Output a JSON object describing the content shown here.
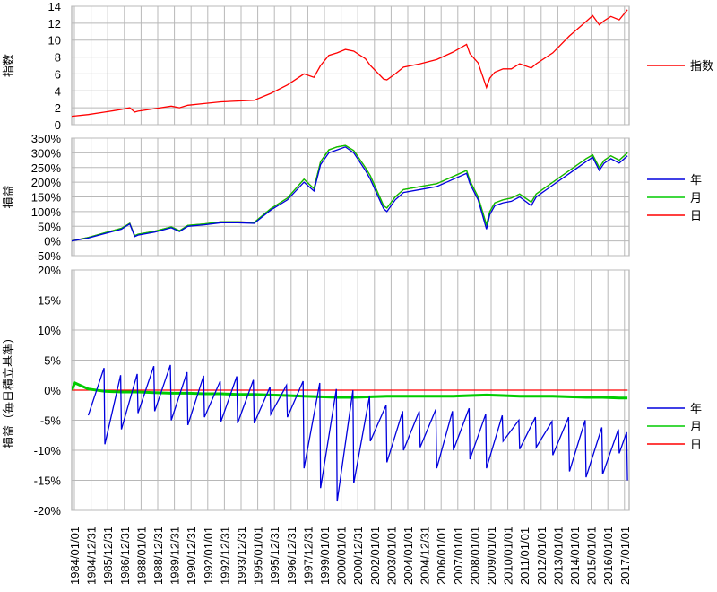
{
  "chart_data": [
    {
      "type": "line",
      "ylabel": "指数",
      "ylim": [
        0,
        14
      ],
      "yticks": [
        0,
        2,
        4,
        6,
        8,
        10,
        12,
        14
      ],
      "ytick_labels": [
        "0",
        "2",
        "4",
        "6",
        "8",
        "10",
        "12",
        "14"
      ],
      "series": [
        {
          "name": "指数",
          "color": "#ff0000",
          "x": [
            1984.0,
            1985.0,
            1986.0,
            1987.0,
            1987.5,
            1987.8,
            1988.0,
            1989.0,
            1990.0,
            1990.5,
            1991.0,
            1992.0,
            1993.0,
            1994.0,
            1995.0,
            1996.0,
            1997.0,
            1998.0,
            1998.6,
            1999.0,
            1999.5,
            2000.0,
            2000.5,
            2001.0,
            2001.7,
            2002.0,
            2002.8,
            2003.0,
            2003.5,
            2004.0,
            2005.0,
            2006.0,
            2007.0,
            2007.8,
            2008.0,
            2008.5,
            2009.0,
            2009.2,
            2009.5,
            2010.0,
            2010.5,
            2011.0,
            2011.7,
            2012.0,
            2013.0,
            2014.0,
            2015.0,
            2015.4,
            2015.8,
            2016.1,
            2016.5,
            2017.0,
            2017.5
          ],
          "y": [
            1.0,
            1.2,
            1.5,
            1.8,
            2.0,
            1.5,
            1.6,
            1.9,
            2.2,
            2.0,
            2.3,
            2.5,
            2.7,
            2.8,
            2.9,
            3.7,
            4.7,
            6.0,
            5.6,
            7.0,
            8.2,
            8.5,
            8.9,
            8.7,
            7.8,
            7.0,
            5.4,
            5.3,
            6.0,
            6.8,
            7.2,
            7.7,
            8.6,
            9.5,
            8.4,
            7.3,
            4.4,
            5.5,
            6.2,
            6.6,
            6.6,
            7.2,
            6.7,
            7.2,
            8.5,
            10.5,
            12.2,
            12.9,
            11.8,
            12.3,
            12.8,
            12.4,
            13.6
          ]
        }
      ]
    },
    {
      "type": "line",
      "ylabel": "損益",
      "ylim": [
        -50,
        350
      ],
      "yticks": [
        -50,
        0,
        50,
        100,
        150,
        200,
        250,
        300,
        350
      ],
      "ytick_labels": [
        "-50%",
        "0%",
        "50%",
        "100%",
        "150%",
        "200%",
        "250%",
        "300%",
        "350%"
      ],
      "series": [
        {
          "name": "年",
          "color": "#0000dd",
          "x": [
            1984.0,
            1985.0,
            1986.0,
            1987.0,
            1987.5,
            1987.8,
            1988.0,
            1989.0,
            1990.0,
            1990.5,
            1991.0,
            1992.0,
            1993.0,
            1994.0,
            1995.0,
            1996.0,
            1997.0,
            1998.0,
            1998.6,
            1999.0,
            1999.5,
            2000.0,
            2000.5,
            2001.0,
            2001.7,
            2002.0,
            2002.8,
            2003.0,
            2003.5,
            2004.0,
            2005.0,
            2006.0,
            2007.0,
            2007.8,
            2008.0,
            2008.5,
            2009.0,
            2009.2,
            2009.5,
            2010.0,
            2010.5,
            2011.0,
            2011.7,
            2012.0,
            2013.0,
            2014.0,
            2015.0,
            2015.4,
            2015.8,
            2016.1,
            2016.5,
            2017.0,
            2017.5
          ],
          "y": [
            0,
            10,
            25,
            40,
            58,
            15,
            20,
            30,
            45,
            32,
            50,
            55,
            62,
            62,
            60,
            105,
            140,
            200,
            170,
            260,
            300,
            310,
            320,
            300,
            240,
            210,
            110,
            100,
            140,
            165,
            175,
            185,
            210,
            230,
            195,
            140,
            40,
            90,
            120,
            130,
            135,
            150,
            120,
            150,
            190,
            230,
            270,
            285,
            240,
            265,
            280,
            265,
            290
          ]
        },
        {
          "name": "月",
          "color": "#00cc00",
          "x": [
            1984.0,
            1985.0,
            1986.0,
            1987.0,
            1987.5,
            1987.8,
            1988.0,
            1989.0,
            1990.0,
            1990.5,
            1991.0,
            1992.0,
            1993.0,
            1994.0,
            1995.0,
            1996.0,
            1997.0,
            1998.0,
            1998.6,
            1999.0,
            1999.5,
            2000.0,
            2000.5,
            2001.0,
            2001.7,
            2002.0,
            2002.8,
            2003.0,
            2003.5,
            2004.0,
            2005.0,
            2006.0,
            2007.0,
            2007.8,
            2008.0,
            2008.5,
            2009.0,
            2009.2,
            2009.5,
            2010.0,
            2010.5,
            2011.0,
            2011.7,
            2012.0,
            2013.0,
            2014.0,
            2015.0,
            2015.4,
            2015.8,
            2016.1,
            2016.5,
            2017.0,
            2017.5
          ],
          "y": [
            0,
            12,
            28,
            43,
            60,
            18,
            23,
            33,
            48,
            35,
            53,
            58,
            65,
            65,
            63,
            110,
            146,
            210,
            178,
            270,
            310,
            320,
            325,
            308,
            250,
            222,
            120,
            112,
            150,
            175,
            185,
            195,
            220,
            240,
            205,
            150,
            55,
            100,
            130,
            140,
            146,
            160,
            132,
            160,
            200,
            240,
            280,
            293,
            250,
            275,
            290,
            275,
            300
          ]
        },
        {
          "name": "日",
          "color": "#ff0000",
          "x": [
            1984.0,
            1985.0,
            1986.0,
            1987.0,
            1987.5,
            1987.8,
            1988.0,
            1989.0,
            1990.0,
            1990.5,
            1991.0,
            1992.0,
            1993.0,
            1994.0,
            1995.0,
            1996.0,
            1997.0,
            1998.0,
            1998.6,
            1999.0,
            1999.5,
            2000.0,
            2000.5,
            2001.0,
            2001.7,
            2002.0,
            2002.8,
            2003.0,
            2003.5,
            2004.0,
            2005.0,
            2006.0,
            2007.0,
            2007.8,
            2008.0,
            2008.5,
            2009.0,
            2009.2,
            2009.5,
            2010.0,
            2010.5,
            2011.0,
            2011.7,
            2012.0,
            2013.0,
            2014.0,
            2015.0,
            2015.4,
            2015.8,
            2016.1,
            2016.5,
            2017.0,
            2017.5
          ],
          "y": [
            0,
            12,
            28,
            43,
            60,
            18,
            23,
            33,
            48,
            35,
            53,
            58,
            65,
            65,
            63,
            110,
            146,
            210,
            178,
            270,
            310,
            320,
            325,
            308,
            250,
            222,
            120,
            112,
            150,
            175,
            185,
            195,
            220,
            240,
            205,
            150,
            55,
            100,
            130,
            140,
            146,
            160,
            132,
            160,
            200,
            240,
            280,
            293,
            250,
            275,
            290,
            275,
            300
          ]
        }
      ]
    },
    {
      "type": "line",
      "ylabel": "損益（毎日積立基準）",
      "ylim": [
        -20,
        20
      ],
      "yticks": [
        -20,
        -15,
        -10,
        -5,
        0,
        5,
        10,
        15,
        20
      ],
      "ytick_labels": [
        "-20%",
        "-15%",
        "-10%",
        "-5%",
        "0%",
        "5%",
        "10%",
        "15%",
        "20%"
      ],
      "series": [
        {
          "name": "年",
          "color": "#0000dd",
          "x": [
            1985.0,
            1985.95,
            1986.0,
            1986.95,
            1987.0,
            1987.95,
            1988.0,
            1988.95,
            1989.0,
            1989.95,
            1990.0,
            1990.95,
            1991.0,
            1991.95,
            1992.0,
            1992.95,
            1993.0,
            1993.95,
            1994.0,
            1994.95,
            1995.0,
            1995.95,
            1996.0,
            1996.95,
            1997.0,
            1997.95,
            1998.0,
            1998.95,
            1999.0,
            1999.95,
            2000.0,
            2000.95,
            2001.0,
            2001.95,
            2002.0,
            2002.95,
            2003.0,
            2003.95,
            2004.0,
            2004.95,
            2005.0,
            2005.95,
            2006.0,
            2006.95,
            2007.0,
            2007.95,
            2008.0,
            2008.95,
            2009.0,
            2009.95,
            2010.0,
            2010.95,
            2011.0,
            2011.95,
            2012.0,
            2012.95,
            2013.0,
            2013.95,
            2014.0,
            2014.95,
            2015.0,
            2015.95,
            2016.0,
            2016.95,
            2017.0,
            2017.45,
            2017.5
          ],
          "y": [
            -4.2,
            3.7,
            -9.0,
            2.5,
            -6.5,
            2.7,
            -3.8,
            4.0,
            -3.5,
            4.2,
            -5.0,
            3.0,
            -5.8,
            2.4,
            -4.5,
            1.5,
            -5.2,
            2.3,
            -5.5,
            1.7,
            -5.5,
            0.5,
            -4.0,
            0.8,
            -4.5,
            1.5,
            -13.0,
            1.2,
            -16.3,
            0.2,
            -18.5,
            0.0,
            -15.5,
            -1.0,
            -8.5,
            -2.5,
            -12.0,
            -3.5,
            -10.0,
            -3.5,
            -9.5,
            -3.2,
            -13.0,
            -3.5,
            -10.0,
            -3.0,
            -11.5,
            -4.0,
            -13.0,
            -4.2,
            -8.5,
            -5.0,
            -9.8,
            -4.5,
            -9.5,
            -5.2,
            -10.8,
            -4.5,
            -13.5,
            -5.0,
            -14.5,
            -6.2,
            -14.0,
            -6.5,
            -10.5,
            -7.0,
            -15.0
          ]
        },
        {
          "name": "月",
          "color": "#00cc00",
          "x": [
            1984.0,
            1984.2,
            1985.0,
            1986.0,
            1987.0,
            1988.0,
            1989.0,
            1990.0,
            1991.0,
            1992.0,
            1993.0,
            1994.0,
            1995.0,
            1996.0,
            1997.0,
            1998.0,
            1999.0,
            2000.0,
            2001.0,
            2002.0,
            2003.0,
            2004.0,
            2005.0,
            2006.0,
            2007.0,
            2008.0,
            2009.0,
            2010.0,
            2011.0,
            2012.0,
            2013.0,
            2014.0,
            2015.0,
            2016.0,
            2017.0,
            2017.5
          ],
          "y": [
            0,
            1.2,
            0.2,
            -0.2,
            -0.3,
            -0.3,
            -0.4,
            -0.5,
            -0.5,
            -0.6,
            -0.6,
            -0.7,
            -0.7,
            -0.8,
            -0.9,
            -1.0,
            -1.1,
            -1.2,
            -1.2,
            -1.1,
            -1.0,
            -1.0,
            -1.0,
            -1.0,
            -1.0,
            -0.9,
            -0.8,
            -0.9,
            -1.0,
            -1.0,
            -1.0,
            -1.1,
            -1.2,
            -1.2,
            -1.3,
            -1.3
          ]
        },
        {
          "name": "日",
          "color": "#ff0000",
          "x": [
            1984.0,
            2017.5
          ],
          "y": [
            0,
            0
          ]
        }
      ]
    }
  ],
  "x_tick_labels": [
    "1984/01/01",
    "1984/12/31",
    "1985/12/31",
    "1986/12/31",
    "1988/01/01",
    "1988/12/31",
    "1989/12/31",
    "1990/12/31",
    "1992/01/01",
    "1992/12/31",
    "1993/12/31",
    "1995/01/01",
    "1995/12/31",
    "1996/12/31",
    "1997/12/31",
    "1999/01/01",
    "2000/01/01",
    "2000/12/31",
    "2002/01/01",
    "2003/01/01",
    "2004/01/01",
    "2004/12/31",
    "2006/01/01",
    "2007/01/01",
    "2008/01/01",
    "2009/01/01",
    "2010/01/01",
    "2011/01/01",
    "2012/01/01",
    "2013/01/01",
    "2014/01/01",
    "2015/01/01",
    "2016/01/01",
    "2017/01/01"
  ],
  "xlim": [
    1984.0,
    2017.6
  ]
}
